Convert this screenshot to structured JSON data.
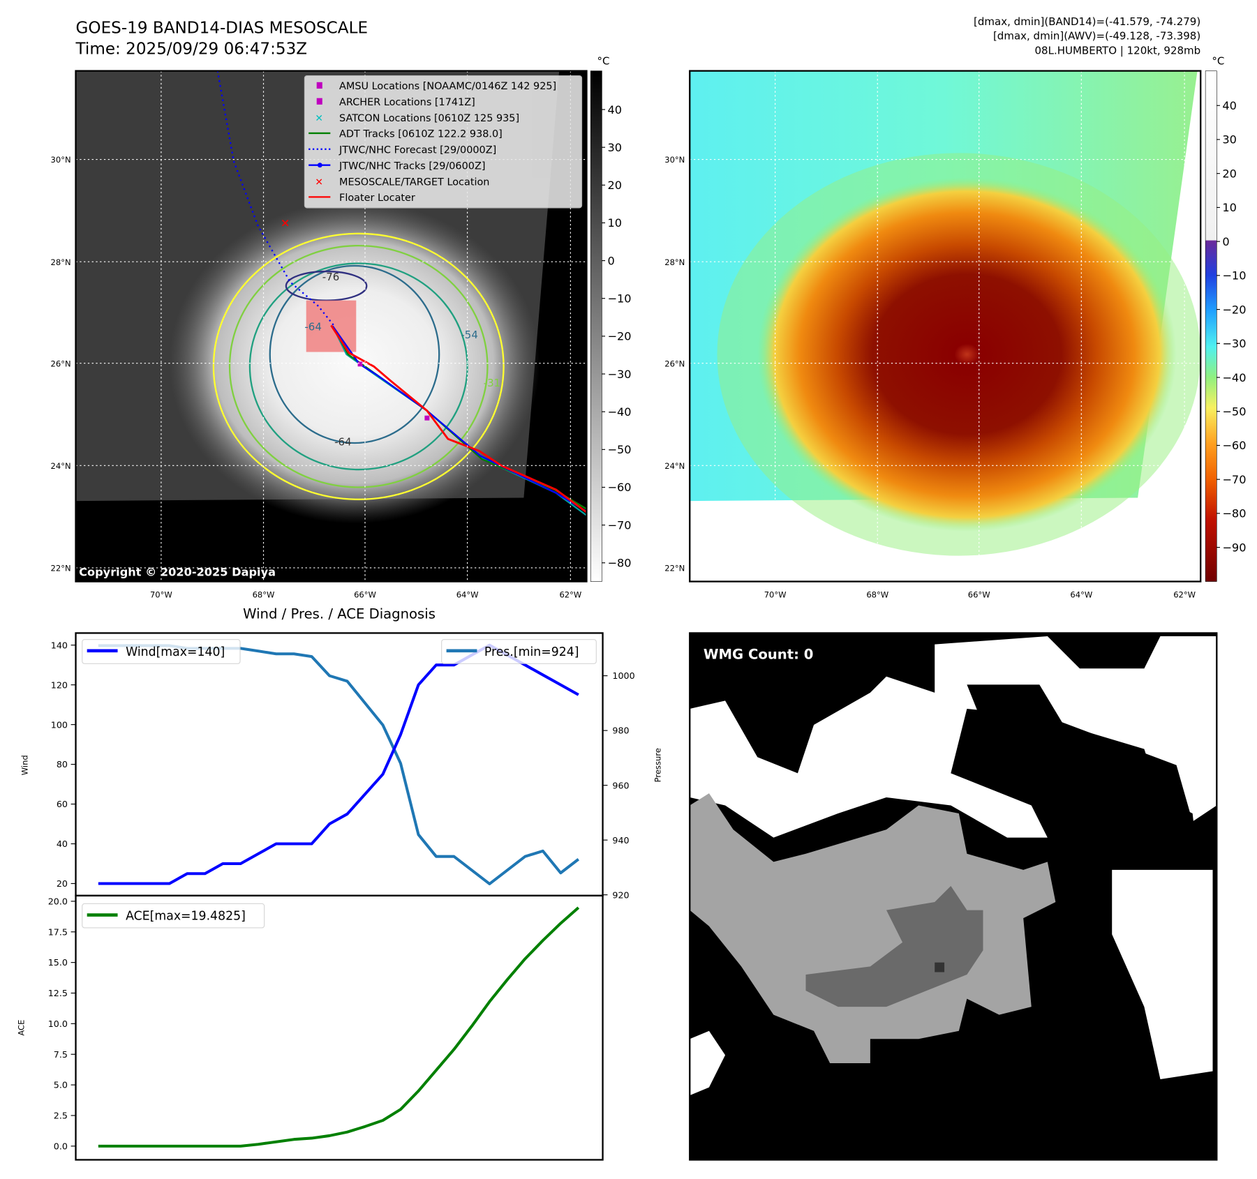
{
  "header": {
    "title": "GOES-19 BAND14-DIAS MESOSCALE",
    "time": "Time: 2025/09/29 06:47:53Z",
    "stats_band14": "[dmax, dmin](BAND14)=(-41.579, -74.279)",
    "stats_awv": "[dmax, dmin](AWV)=(-49.128, -73.398)",
    "storm_info": "08L.HUMBERTO | 120kt, 928mb"
  },
  "maps": {
    "lat_labels": [
      "30°N",
      "28°N",
      "26°N",
      "24°N",
      "22°N"
    ],
    "lon_labels": [
      "70°W",
      "68°W",
      "66°W",
      "64°W",
      "62°W"
    ],
    "unit": "°C",
    "copyright": "Copyright © 2020-2025 Dapiya",
    "contour_labels": [
      "-76",
      "-64",
      "-54",
      "-31",
      "-64"
    ],
    "left_colorbar_ticks": [
      "40",
      "30",
      "20",
      "10",
      "0",
      "−10",
      "−20",
      "−30",
      "−40",
      "−50",
      "−60",
      "−70",
      "−80"
    ],
    "right_colorbar_ticks": [
      "40",
      "30",
      "20",
      "10",
      "0",
      "−10",
      "−20",
      "−30",
      "−40",
      "−50",
      "−60",
      "−70",
      "−80",
      "−90"
    ],
    "legend": [
      {
        "label": "AMSU Locations [NOAAMC/0146Z 142 925]",
        "marker": "square",
        "color": "#bf00bf"
      },
      {
        "label": "ARCHER Locations [1741Z]",
        "marker": "square",
        "color": "#bf00bf"
      },
      {
        "label": "SATCON Locations [0610Z 125 935]",
        "marker": "x",
        "color": "#00bfbf"
      },
      {
        "label": "ADT Tracks [0610Z 122.2 938.0]",
        "marker": "line",
        "color": "#008000"
      },
      {
        "label": "JTWC/NHC Forecast [29/0000Z]",
        "marker": "dotted",
        "color": "#0000ff"
      },
      {
        "label": "JTWC/NHC Tracks [29/0600Z]",
        "marker": "line-dot",
        "color": "#0000ff"
      },
      {
        "label": "MESOSCALE/TARGET Location",
        "marker": "x",
        "color": "#ff0000"
      },
      {
        "label": "Floater Locater",
        "marker": "line",
        "color": "#ff0000"
      }
    ]
  },
  "wmg": {
    "label": "WMG Count: 0"
  },
  "chart_data": [
    {
      "type": "line",
      "title": "Wind / Pres. / ACE Diagnosis",
      "ylabel": "Wind",
      "y2label": "Pressure",
      "ylim": [
        14,
        146
      ],
      "y2lim": [
        917,
        1014
      ],
      "yticks": [
        "20",
        "40",
        "60",
        "80",
        "100",
        "120",
        "140"
      ],
      "y2ticks": [
        "920",
        "940",
        "960",
        "980",
        "1000"
      ],
      "series": [
        {
          "name": "Wind[max=140]",
          "color": "#0000ff",
          "axis": "left",
          "values": [
            20,
            20,
            20,
            20,
            20,
            25,
            25,
            30,
            30,
            35,
            40,
            40,
            40,
            50,
            55,
            65,
            75,
            95,
            120,
            130,
            130,
            135,
            140,
            135,
            130,
            125,
            120,
            115
          ]
        },
        {
          "name": "Pres.[min=924]",
          "color": "#1f77b4",
          "axis": "right",
          "values": [
            1011,
            1011,
            1011,
            1011,
            1011,
            1010,
            1010,
            1010,
            1010,
            1009,
            1008,
            1008,
            1007,
            1000,
            998,
            990,
            982,
            968,
            942,
            934,
            934,
            929,
            924,
            929,
            934,
            936,
            928,
            933
          ]
        }
      ]
    },
    {
      "type": "line",
      "ylabel": "ACE",
      "ylim": [
        -1,
        20
      ],
      "yticks": [
        "0.0",
        "2.5",
        "5.0",
        "7.5",
        "10.0",
        "12.5",
        "15.0",
        "17.5",
        "20.0"
      ],
      "series": [
        {
          "name": "ACE[max=19.4825]",
          "color": "#008000",
          "values": [
            0,
            0,
            0,
            0,
            0,
            0,
            0,
            0,
            0,
            0.15,
            0.35,
            0.55,
            0.65,
            0.85,
            1.15,
            1.6,
            2.1,
            3.0,
            4.5,
            6.2,
            7.9,
            9.8,
            11.8,
            13.6,
            15.3,
            16.8,
            18.2,
            19.48
          ]
        }
      ]
    }
  ]
}
